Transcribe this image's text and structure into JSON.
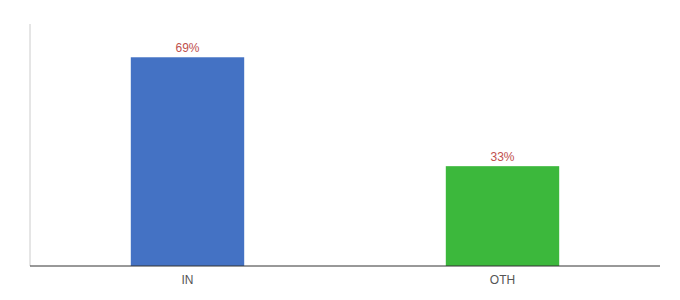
{
  "chart_data": {
    "type": "bar",
    "categories": [
      "IN",
      "OTH"
    ],
    "values": [
      69,
      33
    ],
    "value_labels": [
      "69%",
      "33%"
    ],
    "colors": [
      "#4472c4",
      "#3cb83c"
    ],
    "ylim": [
      0,
      80
    ],
    "data_labels": true,
    "tick_labels": "x"
  }
}
